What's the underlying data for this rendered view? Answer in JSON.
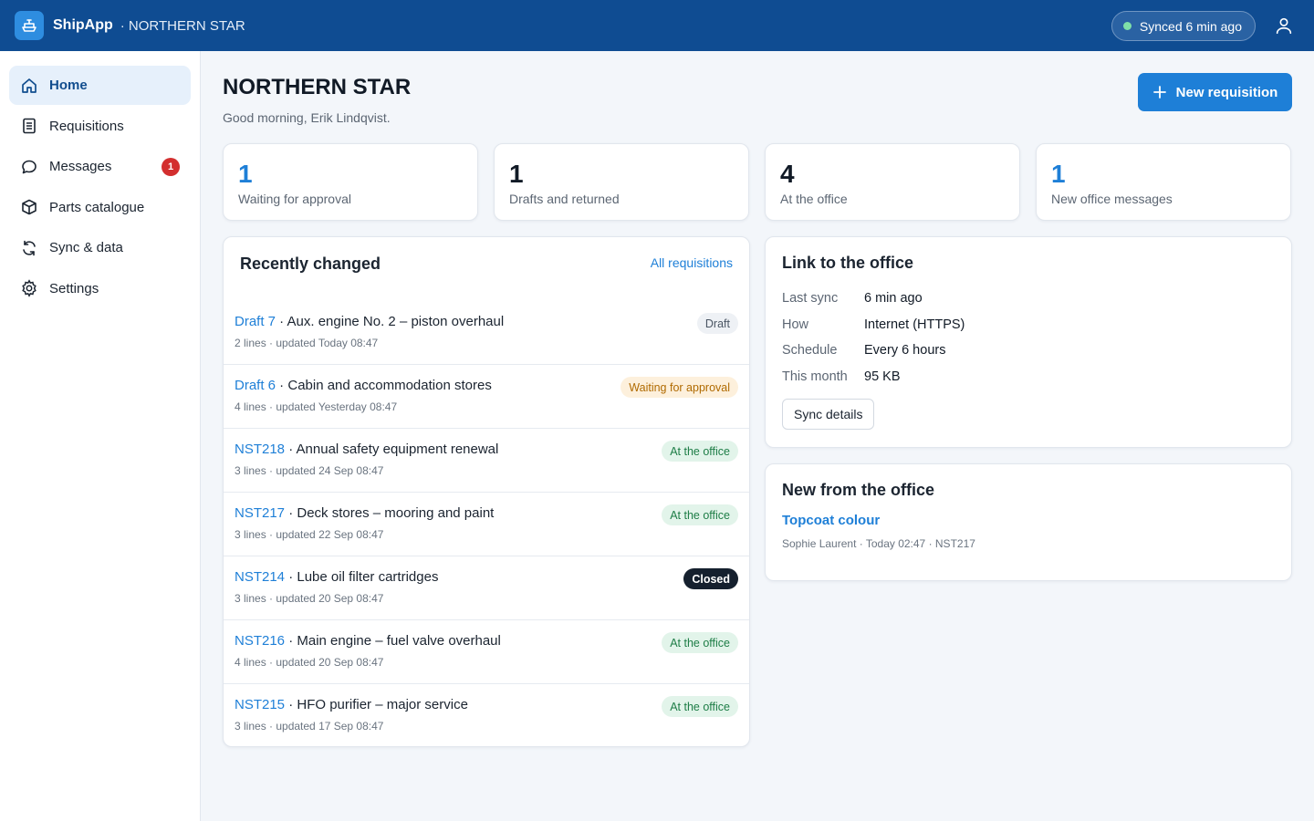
{
  "header": {
    "app_name": "ShipApp",
    "vessel": "· NORTHERN STAR",
    "sync_status": "Synced 6 min ago"
  },
  "sidebar": {
    "items": [
      {
        "label": "Home",
        "icon": "home-icon"
      },
      {
        "label": "Requisitions",
        "icon": "document-icon"
      },
      {
        "label": "Messages",
        "icon": "chat-icon",
        "badge": "1"
      },
      {
        "label": "Parts catalogue",
        "icon": "box-icon"
      },
      {
        "label": "Sync & data",
        "icon": "sync-icon"
      },
      {
        "label": "Settings",
        "icon": "gear-icon"
      }
    ]
  },
  "main": {
    "title": "NORTHERN STAR",
    "greeting": "Good morning, Erik Lindqvist.",
    "new_button": "New requisition",
    "stats": [
      {
        "value": "1",
        "label": "Waiting for approval",
        "color": "#1e7fd7"
      },
      {
        "value": "1",
        "label": "Drafts and returned",
        "color": "#111a26"
      },
      {
        "value": "4",
        "label": "At the office",
        "color": "#111a26"
      },
      {
        "value": "1",
        "label": "New office messages",
        "color": "#1e7fd7"
      }
    ],
    "recent": {
      "title": "Recently changed",
      "all_link": "All requisitions",
      "rows": [
        {
          "id": "Draft 7",
          "name": "Aux. engine No. 2 – piston overhaul",
          "meta": "2 lines · updated Today 08:47",
          "status": "Draft",
          "status_kind": "draft"
        },
        {
          "id": "Draft 6",
          "name": "Cabin and accommodation stores",
          "meta": "4 lines · updated Yesterday 08:47",
          "status": "Waiting for approval",
          "status_kind": "waiting"
        },
        {
          "id": "NST218",
          "name": "Annual safety equipment renewal",
          "meta": "3 lines · updated 24 Sep 08:47",
          "status": "At the office",
          "status_kind": "office"
        },
        {
          "id": "NST217",
          "name": "Deck stores – mooring and paint",
          "meta": "3 lines · updated 22 Sep 08:47",
          "status": "At the office",
          "status_kind": "office"
        },
        {
          "id": "NST214",
          "name": "Lube oil filter cartridges",
          "meta": "3 lines · updated 20 Sep 08:47",
          "status": "Closed",
          "status_kind": "closed"
        },
        {
          "id": "NST216",
          "name": "Main engine – fuel valve overhaul",
          "meta": "4 lines · updated 20 Sep 08:47",
          "status": "At the office",
          "status_kind": "office"
        },
        {
          "id": "NST215",
          "name": "HFO purifier – major service",
          "meta": "3 lines · updated 17 Sep 08:47",
          "status": "At the office",
          "status_kind": "office"
        }
      ]
    },
    "link_office": {
      "title": "Link to the office",
      "rows": [
        {
          "key": "Last sync",
          "value": "6 min ago"
        },
        {
          "key": "How",
          "value": "Internet (HTTPS)"
        },
        {
          "key": "Schedule",
          "value": "Every 6 hours"
        },
        {
          "key": "This month",
          "value": "95 KB"
        }
      ],
      "button": "Sync details"
    },
    "news": {
      "title": "New from the office",
      "link": "Topcoat colour",
      "meta": "Sophie Laurent · Today 02:47 · NST217"
    }
  }
}
